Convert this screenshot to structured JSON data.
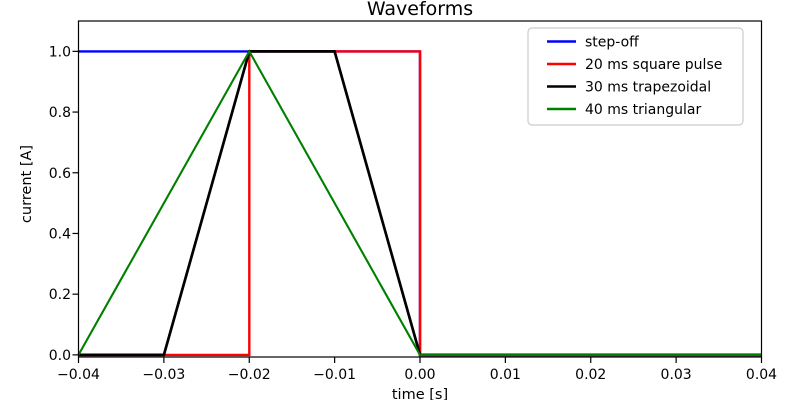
{
  "chart_data": {
    "type": "line",
    "title": "Waveforms",
    "xlabel": "time [s]",
    "ylabel": "current [A]",
    "xlim": [
      -0.04,
      0.04
    ],
    "ylim": [
      -0.007,
      1.1
    ],
    "grid": false,
    "background_color": "#ffffff",
    "spine_color": "#000000",
    "xticks": {
      "values": [
        -0.04,
        -0.03,
        -0.02,
        -0.01,
        0.0,
        0.01,
        0.02,
        0.03,
        0.04
      ],
      "labels": [
        "−0.04",
        "−0.03",
        "−0.02",
        "−0.01",
        "0.00",
        "0.01",
        "0.02",
        "0.03",
        "0.04"
      ]
    },
    "yticks": {
      "values": [
        0.0,
        0.2,
        0.4,
        0.6,
        0.8,
        1.0
      ],
      "labels": [
        "0.0",
        "0.2",
        "0.4",
        "0.6",
        "0.8",
        "1.0"
      ]
    },
    "legend": {
      "position": "upper right",
      "border_color": "#cccccc",
      "fill_color": "#ffffff"
    },
    "series": [
      {
        "name": "step-off",
        "color": "#0000ff",
        "points": [
          [
            -0.04,
            1
          ],
          [
            0,
            1
          ],
          [
            0,
            0
          ],
          [
            0.04,
            0
          ]
        ]
      },
      {
        "name": "20 ms square pulse",
        "color": "#ff0000",
        "points": [
          [
            -0.04,
            0
          ],
          [
            -0.02,
            0
          ],
          [
            -0.02,
            1
          ],
          [
            0,
            1
          ],
          [
            0,
            0
          ],
          [
            0.04,
            0
          ]
        ]
      },
      {
        "name": "30 ms trapezoidal",
        "color": "#000000",
        "points": [
          [
            -0.04,
            0
          ],
          [
            -0.03,
            0
          ],
          [
            -0.02,
            1
          ],
          [
            -0.01,
            1
          ],
          [
            0,
            0
          ],
          [
            0.04,
            0
          ]
        ]
      },
      {
        "name": "40 ms triangular",
        "color": "#008000",
        "points": [
          [
            -0.04,
            0
          ],
          [
            -0.02,
            1
          ],
          [
            0,
            0
          ],
          [
            0.04,
            0
          ]
        ]
      }
    ]
  }
}
